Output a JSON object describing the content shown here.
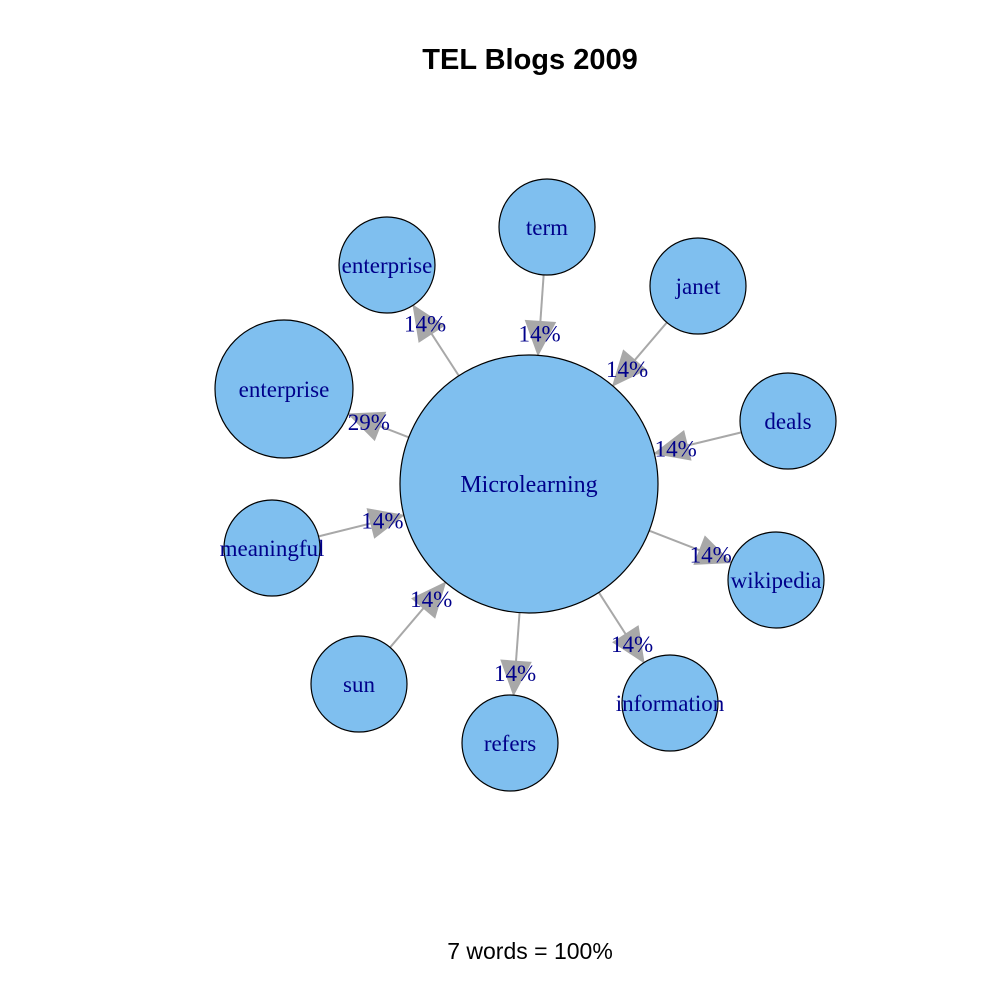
{
  "title": "TEL Blogs 2009",
  "footer": "7 words = 100%",
  "colors": {
    "node_fill": "#7fbfef",
    "node_stroke": "#000000",
    "label": "#00008b",
    "edge": "#a8a8a8",
    "background": "#ffffff"
  },
  "center": {
    "label": "Microlearning"
  },
  "nodes": [
    {
      "id": "term",
      "label": "term",
      "edge_label": "14%",
      "direction": "in"
    },
    {
      "id": "janet",
      "label": "janet",
      "edge_label": "14%",
      "direction": "in"
    },
    {
      "id": "deals",
      "label": "deals",
      "edge_label": "14%",
      "direction": "in"
    },
    {
      "id": "wikipedia",
      "label": "wikipedia",
      "edge_label": "14%",
      "direction": "out"
    },
    {
      "id": "information",
      "label": "information",
      "edge_label": "14%",
      "direction": "out"
    },
    {
      "id": "refers",
      "label": "refers",
      "edge_label": "14%",
      "direction": "out"
    },
    {
      "id": "sun",
      "label": "sun",
      "edge_label": "14%",
      "direction": "in"
    },
    {
      "id": "meaningful",
      "label": "meaningful",
      "edge_label": "14%",
      "direction": "in"
    },
    {
      "id": "enterprise-large",
      "label": "enterprise",
      "edge_label": "29%",
      "direction": "out"
    },
    {
      "id": "enterprise-small",
      "label": "enterprise",
      "edge_label": "14%",
      "direction": "out"
    }
  ]
}
